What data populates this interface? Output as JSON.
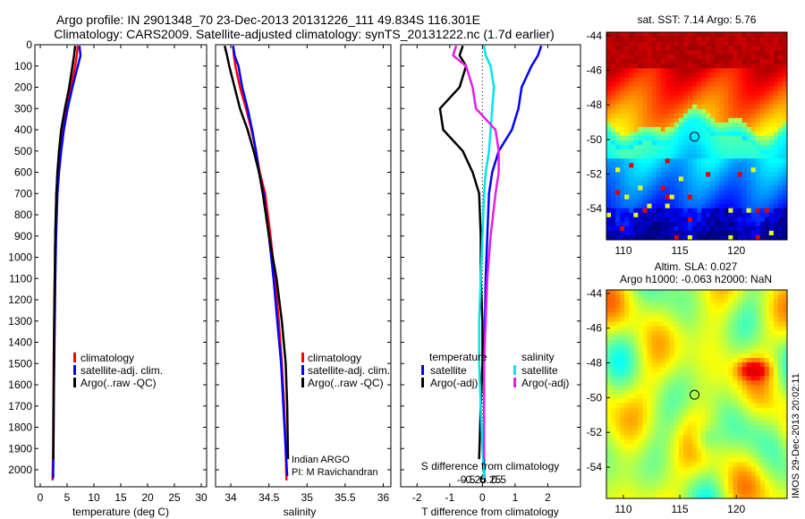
{
  "title": {
    "line1": "Argo profile: IN 2901348_70 23-Dec-2013 20131226_111 49.834S 116.301E",
    "line2": "Climatology: CARS2009. Satellite-adjusted climatology: synTS_20131222.nc (1.7d earlier)"
  },
  "chart_data": [
    {
      "type": "line",
      "xlabel": "temperature (deg C)",
      "ylabel": "",
      "xlim": [
        -1,
        31
      ],
      "ylim": [
        2080,
        0
      ],
      "xticks": [
        0,
        5,
        10,
        15,
        20,
        25,
        30
      ],
      "yticks": [
        0,
        100,
        200,
        300,
        400,
        500,
        600,
        700,
        800,
        900,
        1000,
        1100,
        1200,
        1300,
        1400,
        1500,
        1600,
        1700,
        1800,
        1900,
        2000
      ],
      "legend": [
        "climatology",
        "satellite-adj. clim.",
        "Argo(..raw -QC)"
      ],
      "series": [
        {
          "name": "climatology",
          "color": "#ff0000",
          "x": [
            7.0,
            6.8,
            6.5,
            5.8,
            4.8,
            4.0,
            3.6,
            3.3,
            3.0,
            2.8,
            2.7,
            2.6,
            2.5,
            2.45,
            2.4,
            2.3
          ],
          "y": [
            5,
            50,
            100,
            200,
            300,
            400,
            500,
            600,
            700,
            900,
            1100,
            1300,
            1500,
            1700,
            1900,
            2050
          ]
        },
        {
          "name": "satellite-adj. clim.",
          "color": "#0000ff",
          "x": [
            7.3,
            7.5,
            7.0,
            6.0,
            5.1,
            4.4,
            3.9,
            3.5,
            3.2,
            2.95,
            2.8,
            2.7,
            2.6,
            2.5,
            2.45,
            2.4
          ],
          "y": [
            5,
            50,
            100,
            200,
            300,
            400,
            500,
            600,
            700,
            900,
            1100,
            1300,
            1500,
            1700,
            1900,
            2040
          ]
        },
        {
          "name": "Argo(..raw -QC)",
          "color": "#000000",
          "x": [
            6.5,
            6.3,
            6.0,
            5.4,
            4.6,
            3.9,
            3.5,
            3.2,
            3.0,
            2.8,
            2.7,
            2.6,
            2.55,
            2.5,
            2.45
          ],
          "y": [
            5,
            50,
            100,
            200,
            300,
            400,
            500,
            600,
            700,
            900,
            1100,
            1300,
            1500,
            1700,
            1950
          ]
        }
      ]
    },
    {
      "type": "line",
      "xlabel": "salinity",
      "xlim": [
        33.8,
        36.1
      ],
      "ylim": [
        2080,
        0
      ],
      "xticks": [
        34,
        34.5,
        35,
        35.5,
        36
      ],
      "xtick_labels": [
        "34",
        "34.5",
        "35",
        "35.5",
        "36"
      ],
      "legend": [
        "climatology",
        "satellite-adj. clim.",
        "Argo(..raw -QC)"
      ],
      "annotation": [
        "Indian ARGO",
        "PI: M Ravichandran"
      ],
      "series": [
        {
          "name": "climatology",
          "color": "#ff0000",
          "x": [
            34.03,
            34.04,
            34.06,
            34.12,
            34.2,
            34.27,
            34.33,
            34.38,
            34.45,
            34.52,
            34.58,
            34.63,
            34.67,
            34.7,
            34.72,
            34.73
          ],
          "y": [
            5,
            50,
            100,
            200,
            300,
            400,
            500,
            600,
            700,
            900,
            1100,
            1300,
            1500,
            1700,
            1900,
            2050
          ]
        },
        {
          "name": "satellite-adj. clim.",
          "color": "#0000ff",
          "x": [
            34.03,
            34.05,
            34.1,
            34.15,
            34.22,
            34.28,
            34.33,
            34.37,
            34.43,
            34.5,
            34.56,
            34.61,
            34.66,
            34.69,
            34.72,
            34.74
          ],
          "y": [
            5,
            50,
            100,
            200,
            300,
            400,
            500,
            600,
            700,
            900,
            1100,
            1300,
            1500,
            1700,
            1900,
            2030
          ]
        },
        {
          "name": "Argo(..raw -QC)",
          "color": "#000000",
          "x": [
            33.92,
            33.95,
            33.98,
            34.05,
            34.12,
            34.22,
            34.3,
            34.37,
            34.42,
            34.5,
            34.6,
            34.67,
            34.72,
            34.74,
            34.75
          ],
          "y": [
            5,
            50,
            100,
            200,
            300,
            400,
            500,
            600,
            700,
            900,
            1100,
            1300,
            1500,
            1700,
            1950
          ]
        }
      ]
    },
    {
      "type": "line",
      "xlabel": "T difference from climatology",
      "top_label": "S difference from climatology",
      "xlim": [
        -2.5,
        3.0
      ],
      "ylim": [
        2080,
        0
      ],
      "xticks": [
        -2,
        -1,
        0,
        1,
        2
      ],
      "top_ticks": [
        -0.5,
        -0.25,
        0,
        0.25,
        0.5
      ],
      "top_tick_labels": [
        "-0.5",
        "-0.25",
        "0",
        "0.25",
        "0.5"
      ],
      "legend_temperature": "temperature",
      "legend_salinity": "salinity",
      "legend_sat_t": "satellite",
      "legend_argo_t": "Argo(-adj)",
      "legend_sat_s": "satellite",
      "legend_argo_s": "Argo(-adj)",
      "series": [
        {
          "name": "satellite",
          "color": "#0000ff",
          "x": [
            1.8,
            1.7,
            1.5,
            1.2,
            1.1,
            0.9,
            0.5,
            0.3,
            0.2,
            0.15,
            0.1,
            0.08,
            0.05,
            0.05,
            0.05,
            0.05
          ],
          "y": [
            5,
            50,
            100,
            200,
            300,
            400,
            500,
            600,
            700,
            900,
            1100,
            1300,
            1500,
            1700,
            1900,
            2040
          ]
        },
        {
          "name": "Argo(-adj)",
          "color": "#000000",
          "x": [
            -0.6,
            -0.7,
            -0.5,
            -0.7,
            -1.3,
            -1.2,
            -0.6,
            -0.3,
            -0.1,
            -0.05,
            -0.05,
            0.0,
            0.0,
            -0.05,
            -0.1
          ],
          "y": [
            5,
            50,
            100,
            200,
            300,
            400,
            500,
            600,
            700,
            900,
            1100,
            1300,
            1500,
            1700,
            1950
          ]
        },
        {
          "name": "satellite",
          "color": "#00e5e5",
          "x": [
            0.05,
            0.1,
            0.25,
            0.35,
            0.3,
            0.25,
            0.2,
            0.1,
            0.05,
            0.0,
            -0.05,
            -0.1,
            -0.1,
            -0.05,
            0.0,
            0.05
          ],
          "y": [
            5,
            50,
            100,
            200,
            300,
            400,
            500,
            600,
            700,
            900,
            1100,
            1300,
            1500,
            1700,
            1900,
            2040
          ]
        },
        {
          "name": "Argo(-adj)",
          "color": "#e51ee5",
          "x": [
            -0.8,
            -0.9,
            -0.5,
            -0.3,
            -0.2,
            0.4,
            0.5,
            0.5,
            0.4,
            0.25,
            0.15,
            0.1,
            0.05,
            0.05,
            0.05
          ],
          "y": [
            5,
            50,
            100,
            200,
            300,
            400,
            500,
            600,
            700,
            900,
            1100,
            1300,
            1500,
            1700,
            1950
          ]
        }
      ]
    },
    {
      "type": "heatmap",
      "title": "sat. SST: 7.14 Argo: 5.76",
      "xlim": [
        108.5,
        124.5
      ],
      "ylim": [
        -55.8,
        -43.8
      ],
      "xticks": [
        110,
        115,
        120
      ],
      "yticks": [
        -44,
        -46,
        -48,
        -50,
        -52,
        -54
      ],
      "marker": {
        "lon": 116.3,
        "lat": -49.834
      }
    },
    {
      "type": "heatmap",
      "title_line1": "Altim. SLA: 0.027",
      "title_line2": "Argo h1000: -0.063 h2000: NaN",
      "xlim": [
        108.5,
        124.5
      ],
      "ylim": [
        -55.8,
        -43.8
      ],
      "xticks": [
        110,
        115,
        120
      ],
      "yticks": [
        -44,
        -46,
        -48,
        -50,
        -52,
        -54
      ],
      "marker": {
        "lon": 116.3,
        "lat": -49.834
      },
      "side_label": "IMOS 29-Dec-2013 20:02:11"
    }
  ]
}
